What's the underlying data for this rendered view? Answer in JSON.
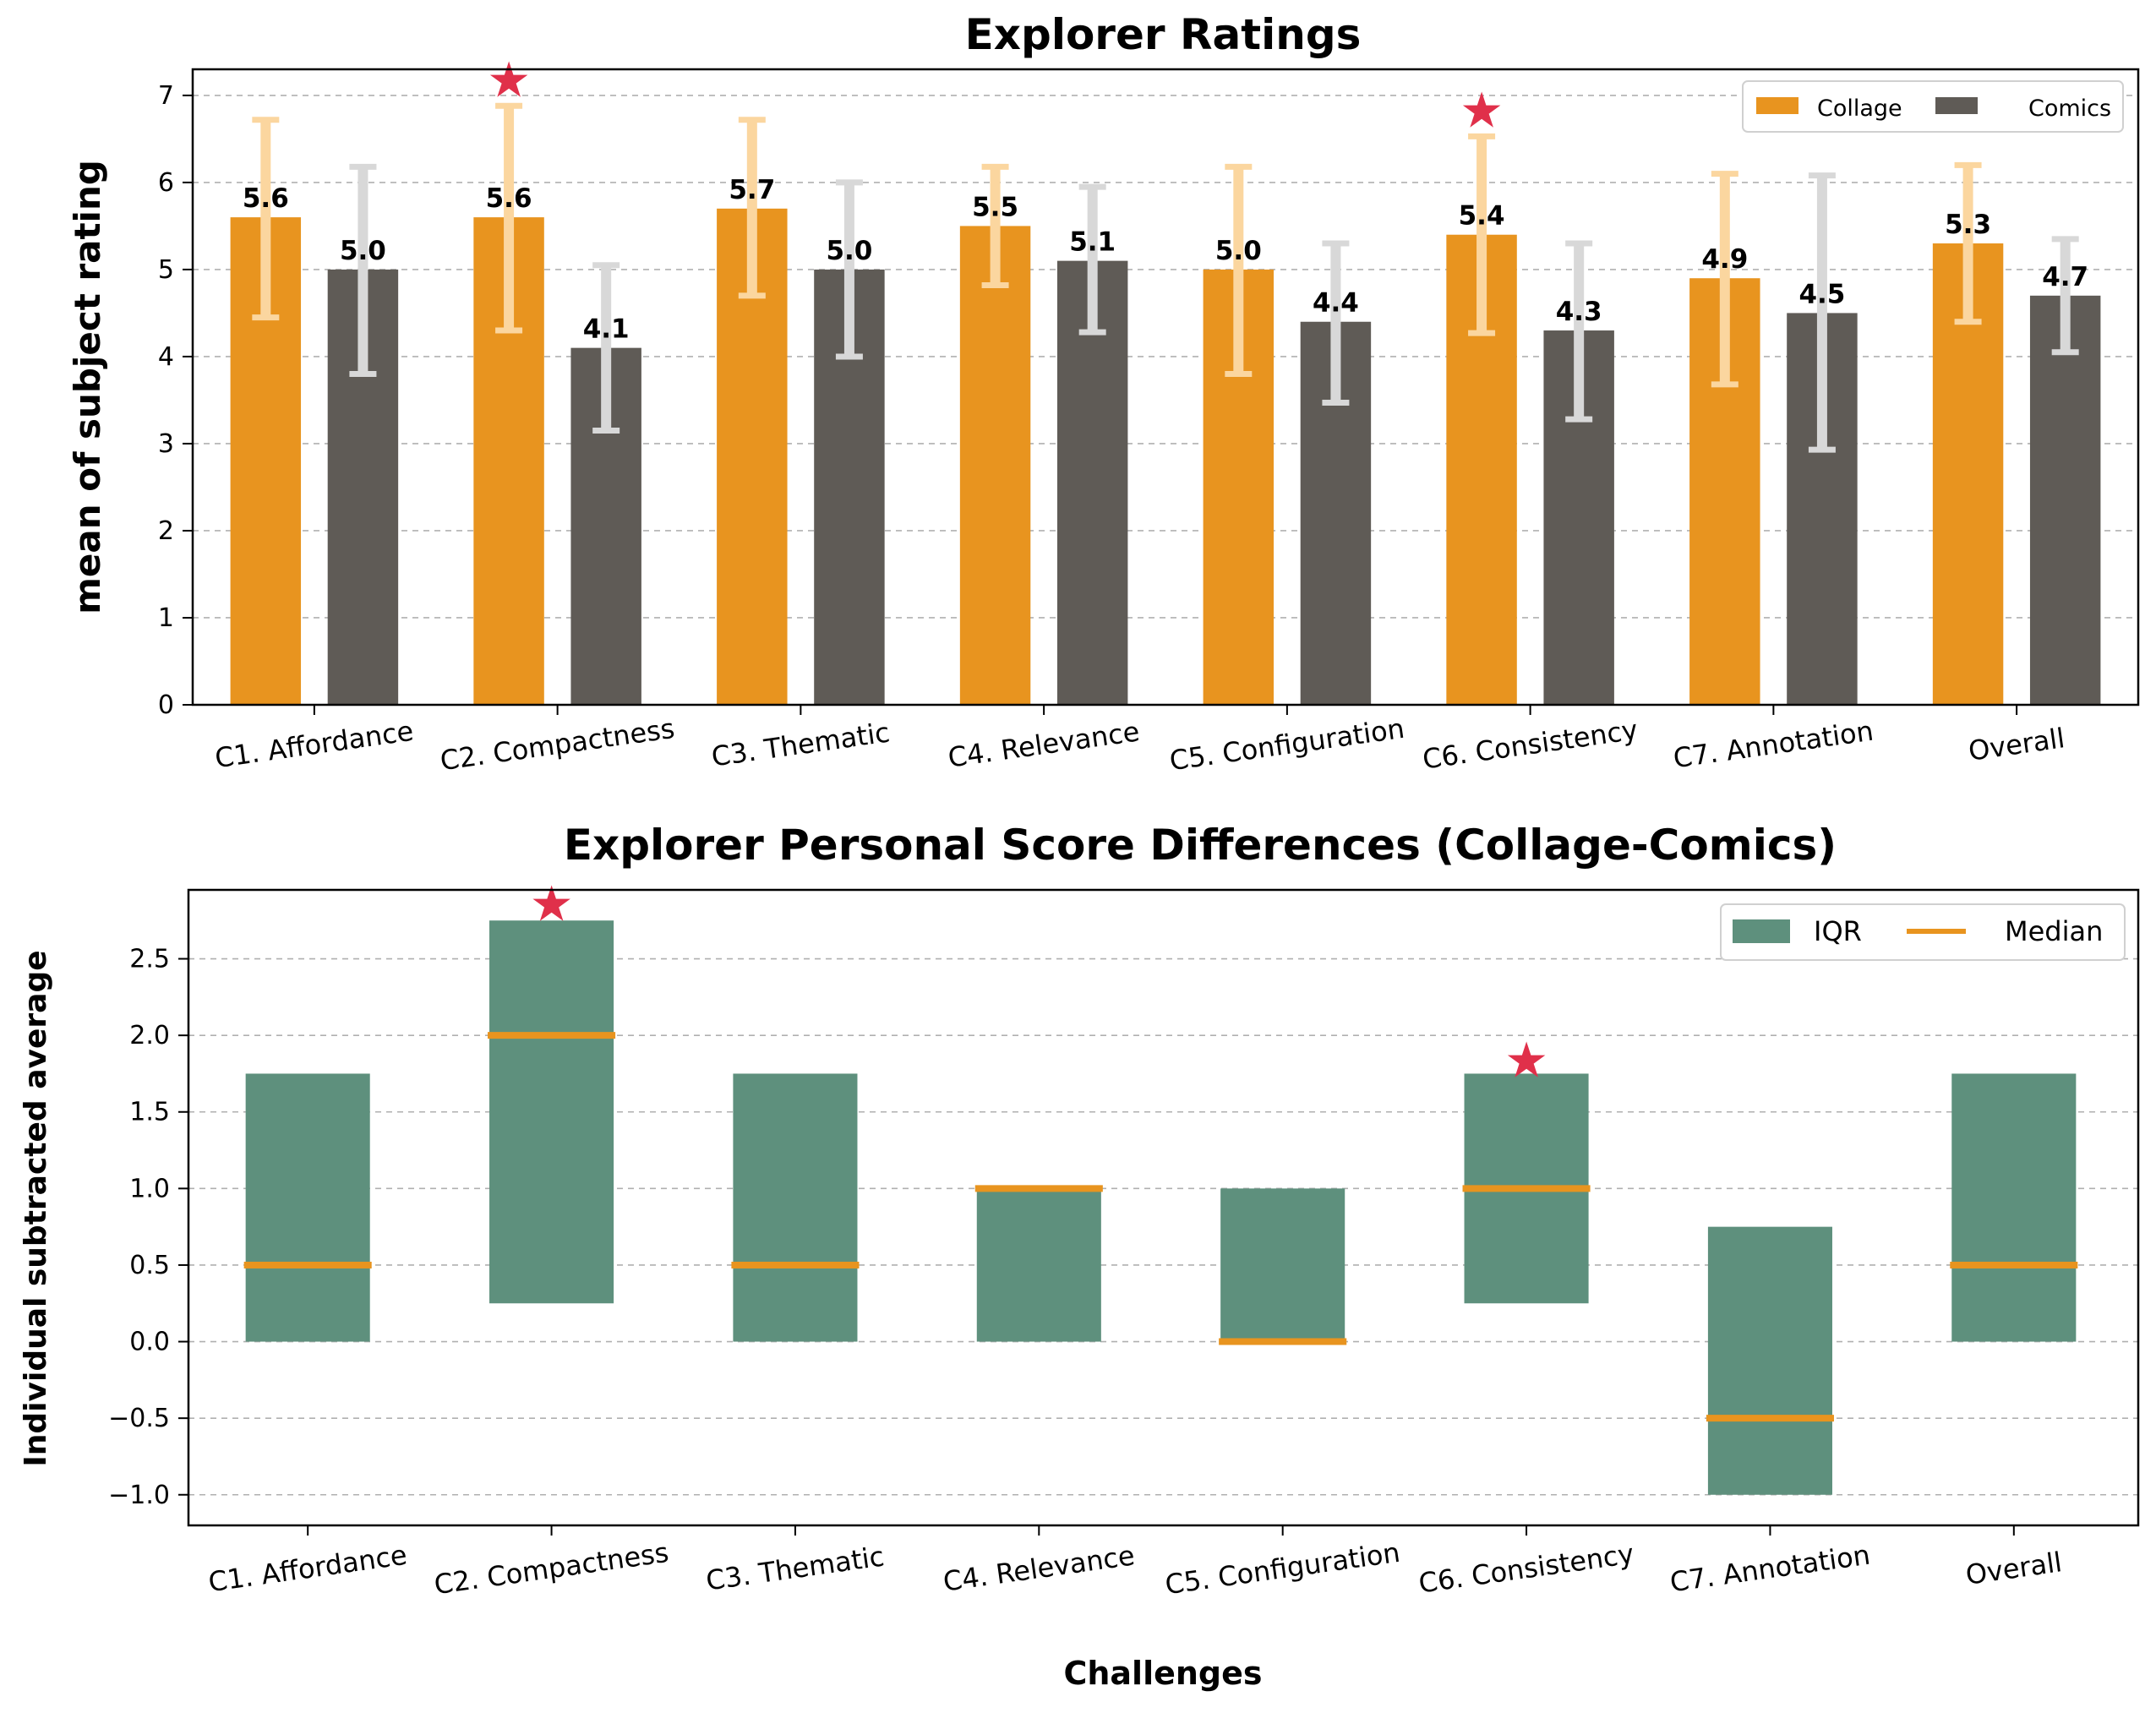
{
  "chart_data": [
    {
      "type": "bar",
      "title": "Explorer Ratings",
      "xlabel": "",
      "ylabel": "mean of subject rating",
      "ylim": [
        0,
        7.3
      ],
      "yticks": [
        "0",
        "1",
        "2",
        "3",
        "4",
        "5",
        "6",
        "7"
      ],
      "grid": true,
      "legend_position": "top-right",
      "categories": [
        "C1. Affordance",
        "C2. Compactness",
        "C3. Thematic",
        "C4. Relevance",
        "C5. Configuration",
        "C6. Consistency",
        "C7. Annotation",
        "Overall"
      ],
      "series": [
        {
          "name": "Collage",
          "color": "#e8941f",
          "errorbar_color": "#fbd69f",
          "values": [
            5.6,
            5.6,
            5.7,
            5.5,
            5.0,
            5.4,
            4.9,
            5.3
          ],
          "labels": [
            "5.6",
            "5.6",
            "5.7",
            "5.5",
            "5.0",
            "5.4",
            "4.9",
            "5.3"
          ],
          "error_low": [
            4.45,
            4.3,
            4.7,
            4.82,
            3.8,
            4.27,
            3.68,
            4.4
          ],
          "error_high": [
            6.72,
            6.88,
            6.72,
            6.18,
            6.18,
            6.53,
            6.1,
            6.2
          ]
        },
        {
          "name": "Comics",
          "color": "#5f5b56",
          "errorbar_color": "#d8d8d8",
          "values": [
            5.0,
            4.1,
            5.0,
            5.1,
            4.4,
            4.3,
            4.5,
            4.7
          ],
          "labels": [
            "5.0",
            "4.1",
            "5.0",
            "5.1",
            "4.4",
            "4.3",
            "4.5",
            "4.7"
          ],
          "error_low": [
            3.8,
            3.15,
            4.0,
            4.28,
            3.47,
            3.28,
            2.93,
            4.05
          ],
          "error_high": [
            6.18,
            5.05,
            6.0,
            5.95,
            5.3,
            5.3,
            6.08,
            5.35
          ]
        }
      ],
      "significance_markers": [
        {
          "category": "C2. Compactness",
          "value": 7.2,
          "symbol": "★",
          "color": "#e0304a"
        },
        {
          "category": "C6. Consistency",
          "value": 6.85,
          "symbol": "★",
          "color": "#e0304a"
        }
      ]
    },
    {
      "type": "box",
      "title": "Explorer Personal Score Differences (Collage-Comics)",
      "xlabel": "Challenges",
      "ylabel": "Individual subtracted average",
      "ylim": [
        -1.2,
        2.95
      ],
      "yticks": [
        "−1.0",
        "−0.5",
        "0.0",
        "0.5",
        "1.0",
        "1.5",
        "2.0",
        "2.5"
      ],
      "ytick_values": [
        -1.0,
        -0.5,
        0.0,
        0.5,
        1.0,
        1.5,
        2.0,
        2.5
      ],
      "grid": true,
      "legend_position": "top-right",
      "categories": [
        "C1. Affordance",
        "C2. Compactness",
        "C3. Thematic",
        "C4. Relevance",
        "C5. Configuration",
        "C6. Consistency",
        "C7. Annotation",
        "Overall"
      ],
      "iqr": {
        "name": "IQR",
        "color": "#5e907d",
        "q1": [
          0.0,
          0.25,
          0.0,
          0.0,
          0.0,
          0.25,
          -1.0,
          0.0
        ],
        "q3": [
          1.75,
          2.75,
          1.75,
          1.0,
          1.0,
          1.75,
          0.75,
          1.75
        ]
      },
      "median": {
        "name": "Median",
        "color": "#e8941f",
        "values": [
          0.5,
          2.0,
          0.5,
          1.0,
          0.0,
          1.0,
          -0.5,
          0.5
        ]
      },
      "significance_markers": [
        {
          "category": "C2. Compactness",
          "value": 2.87,
          "symbol": "★",
          "color": "#e0304a"
        },
        {
          "category": "C6. Consistency",
          "value": 1.85,
          "symbol": "★",
          "color": "#e0304a"
        }
      ]
    }
  ]
}
